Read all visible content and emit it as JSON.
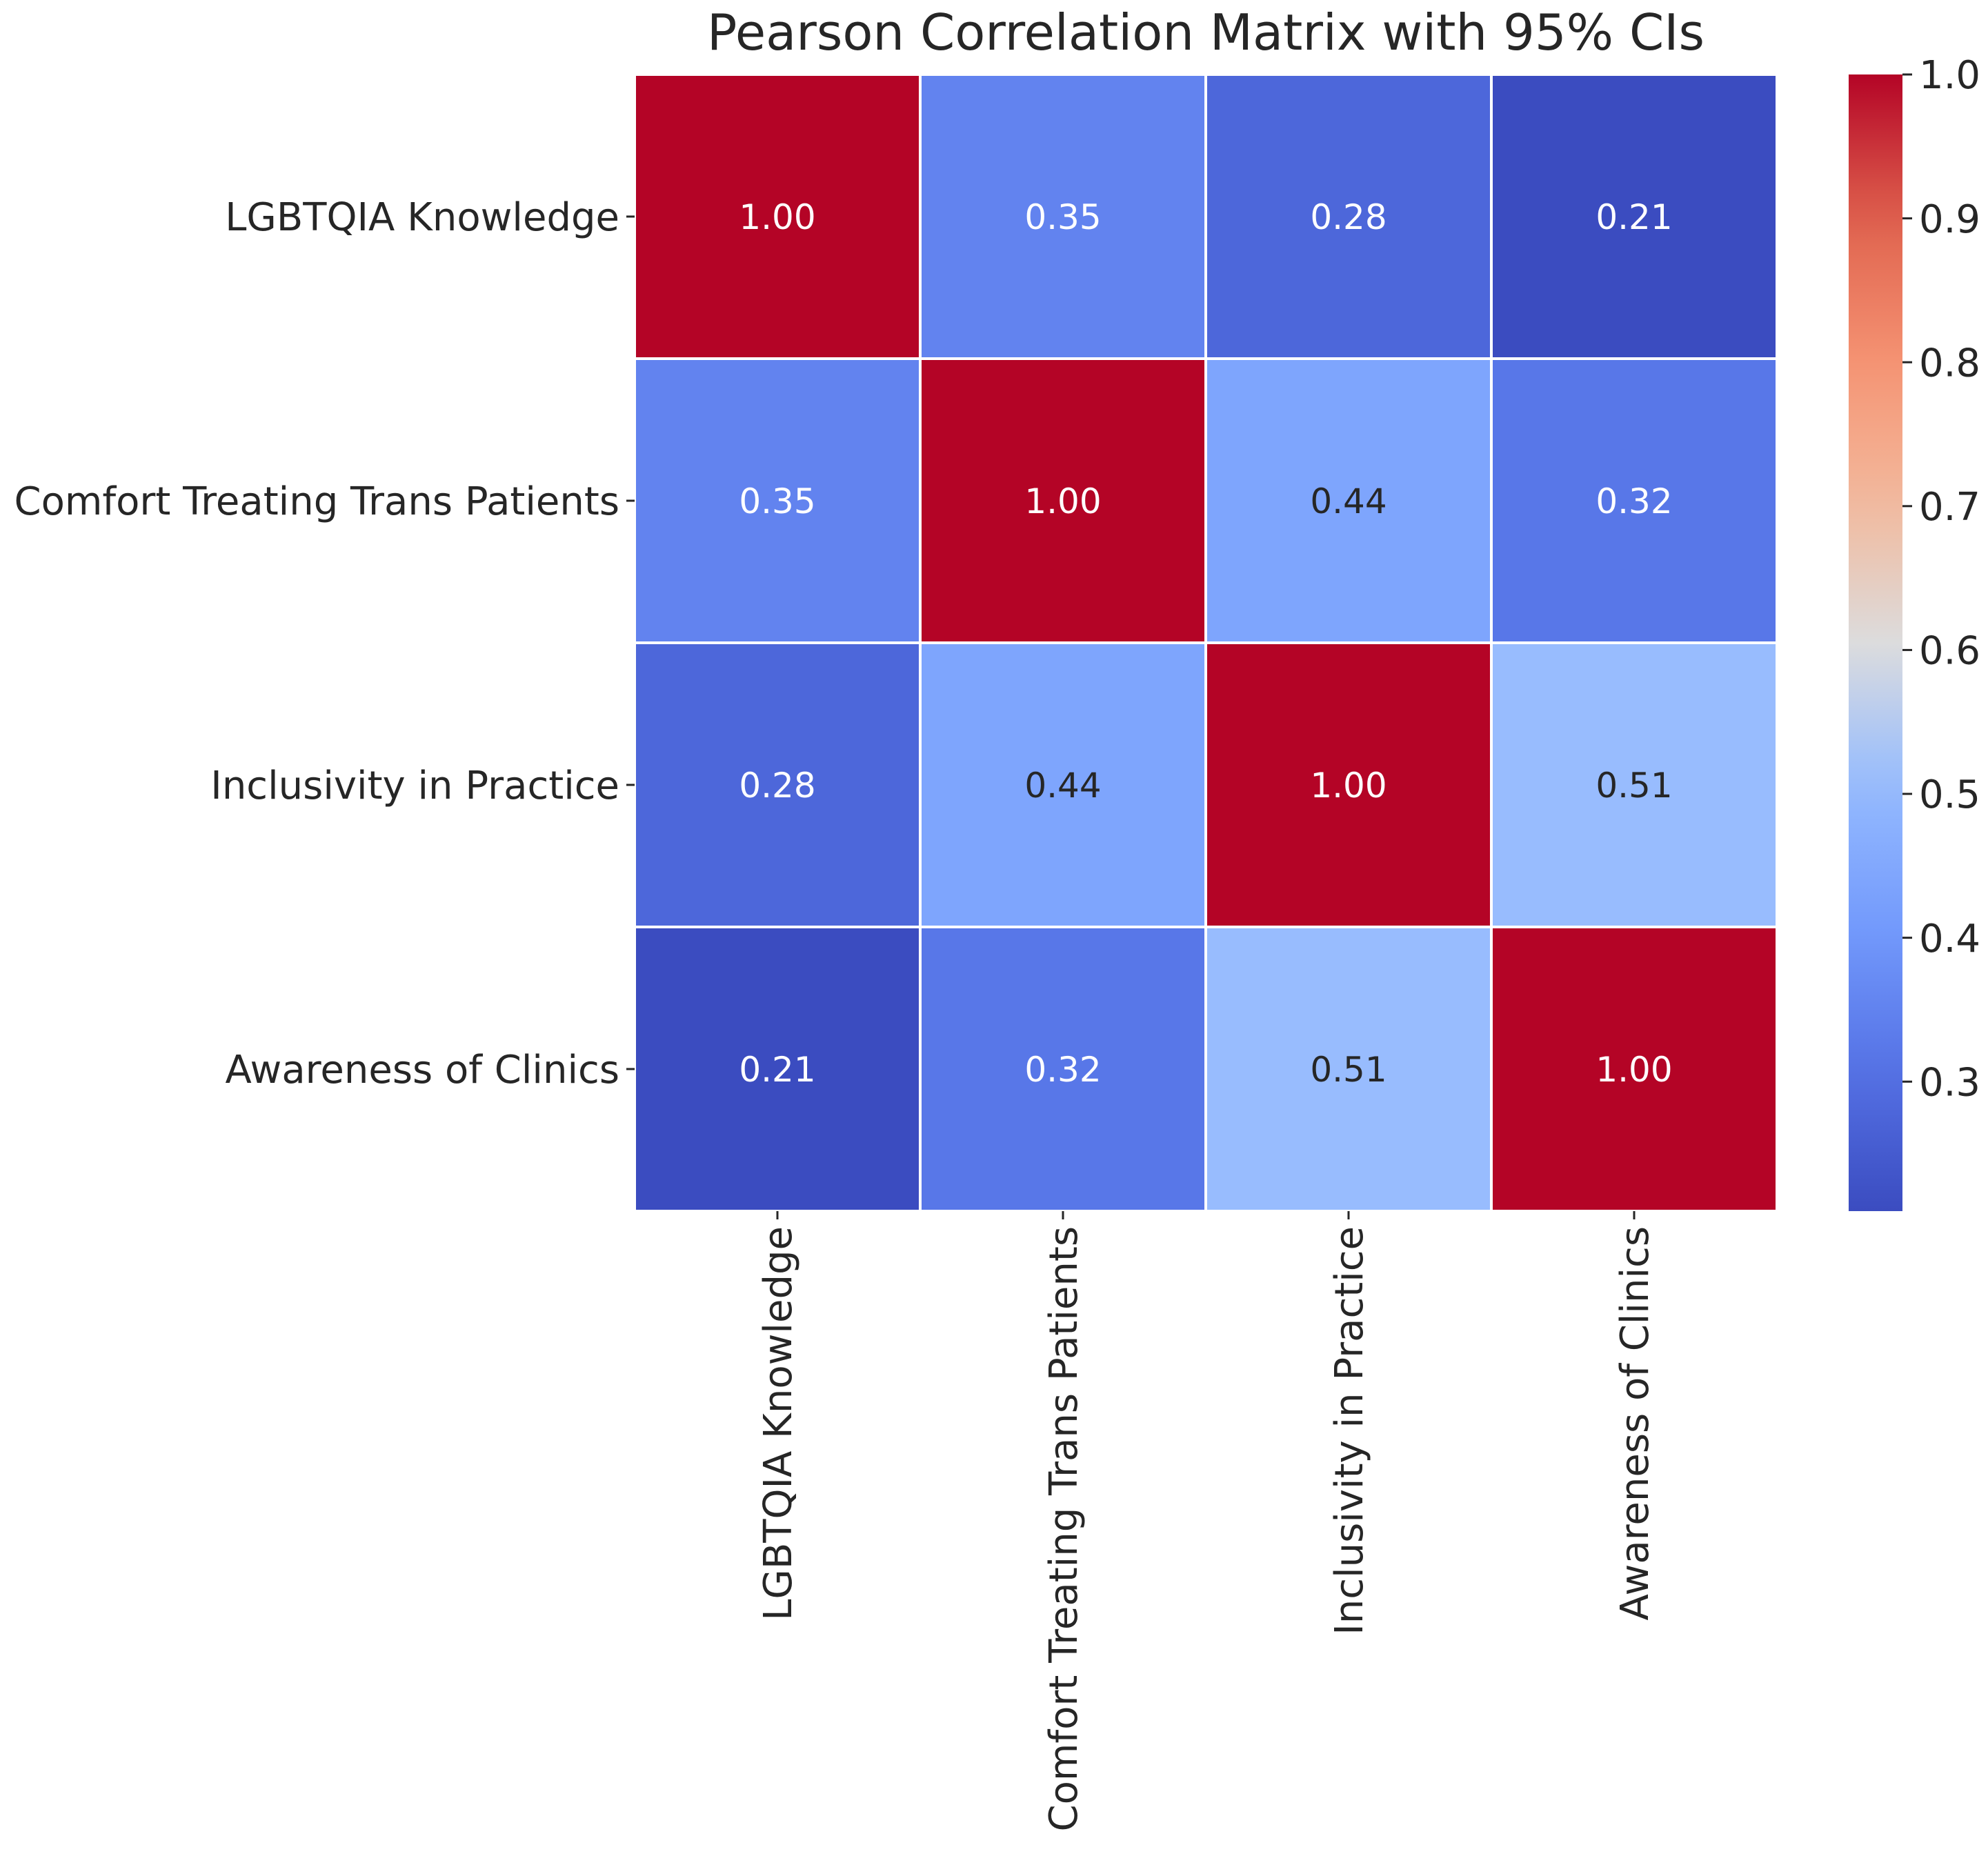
{
  "chart_data": {
    "type": "heatmap",
    "title": "Pearson Correlation Matrix with 95% CIs",
    "row_labels": [
      "LGBTQIA Knowledge",
      "Comfort Treating Trans Patients",
      "Inclusivity in Practice",
      "Awareness of Clinics"
    ],
    "col_labels": [
      "LGBTQIA Knowledge",
      "Comfort Treating Trans Patients",
      "Inclusivity in Practice",
      "Awareness of Clinics"
    ],
    "values": [
      [
        1.0,
        0.35,
        0.28,
        0.21
      ],
      [
        0.35,
        1.0,
        0.44,
        0.32
      ],
      [
        0.28,
        0.44,
        1.0,
        0.51
      ],
      [
        0.21,
        0.32,
        0.51,
        1.0
      ]
    ],
    "value_labels": [
      [
        "1.00",
        "0.35",
        "0.28",
        "0.21"
      ],
      [
        "0.35",
        "1.00",
        "0.44",
        "0.32"
      ],
      [
        "0.28",
        "0.44",
        "1.00",
        "0.51"
      ],
      [
        "0.21",
        "0.32",
        "0.51",
        "1.00"
      ]
    ],
    "colormap": "coolwarm",
    "colorbar": {
      "vmin": 0.21,
      "vmax": 1.0,
      "ticks": [
        0.3,
        0.4,
        0.5,
        0.6,
        0.7,
        0.8,
        0.9,
        1.0
      ],
      "tick_labels": [
        "0.3",
        "0.4",
        "0.5",
        "0.6",
        "0.7",
        "0.8",
        "0.9",
        "1.0"
      ]
    },
    "xlabel": "",
    "ylabel": ""
  },
  "colors": {
    "cell_border": "#ffffff",
    "text_light": "#ffffff",
    "text_dark": "#262626",
    "axis_text": "#262626"
  }
}
